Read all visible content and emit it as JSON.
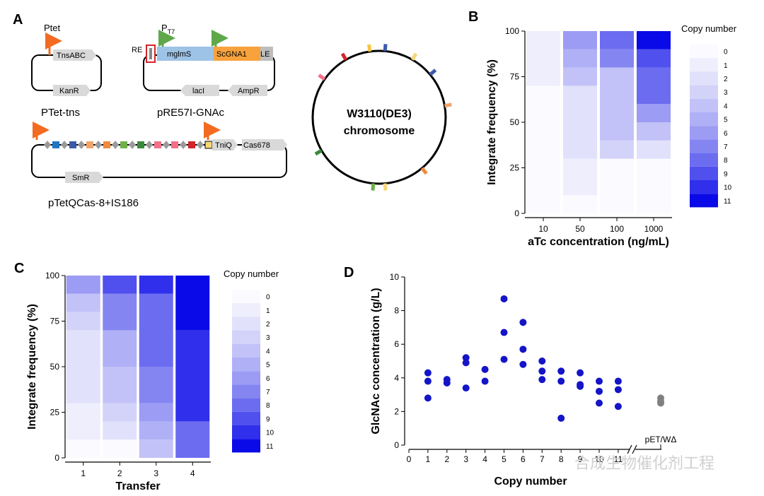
{
  "panels": {
    "a": "A",
    "b": "B",
    "c": "C",
    "d": "D"
  },
  "panel_a": {
    "plasmid1": {
      "promoter": "Ptet",
      "genes": [
        "TnsABC",
        "KanR"
      ],
      "name": "PTet-tns"
    },
    "plasmid2": {
      "promoter": "PT7",
      "promoter_base": "P",
      "promoter_sub": "T7",
      "left_end": "RE",
      "genes": [
        "mglmS",
        "ScGNA1",
        "LE",
        "lacI",
        "AmpR"
      ],
      "name": "pRE57I-GNAc"
    },
    "plasmid3": {
      "genes": [
        "TniQ",
        "Cas678",
        "SmR"
      ],
      "name": "pTetQCas-8+IS186"
    },
    "chromosome": {
      "line1": "W3110(DE3)",
      "line2": "chromosome"
    }
  },
  "legend": {
    "title": "Copy number",
    "labels": [
      "0",
      "1",
      "2",
      "3",
      "4",
      "5",
      "6",
      "7",
      "8",
      "9",
      "10",
      "11"
    ]
  },
  "palette": [
    "#fbfbff",
    "#eeeefd",
    "#e1e1fb",
    "#d3d3f9",
    "#c2c2f8",
    "#b0b0f7",
    "#9c9cf4",
    "#8585f2",
    "#6c6cf0",
    "#5050ee",
    "#3030ec",
    "#0a0ae8"
  ],
  "chart_data": [
    {
      "type": "bar",
      "stacked": true,
      "xlabel": "aTc concentration (ng/mL)",
      "ylabel": "Integrate frequency (%)",
      "ylim": [
        0,
        100
      ],
      "yticks": [
        "0",
        "25",
        "50",
        "75",
        "100"
      ],
      "categories": [
        "10",
        "50",
        "100",
        "1000"
      ],
      "legend_position": "right",
      "series": [
        {
          "name": "0",
          "values": [
            70,
            10,
            30,
            30
          ]
        },
        {
          "name": "1",
          "values": [
            30,
            20,
            0,
            0
          ]
        },
        {
          "name": "2",
          "values": [
            0,
            40,
            0,
            10
          ]
        },
        {
          "name": "3",
          "values": [
            0,
            0,
            10,
            0
          ]
        },
        {
          "name": "4",
          "values": [
            0,
            10,
            40,
            10
          ]
        },
        {
          "name": "5",
          "values": [
            0,
            10,
            0,
            0
          ]
        },
        {
          "name": "6",
          "values": [
            0,
            10,
            0,
            10
          ]
        },
        {
          "name": "7",
          "values": [
            0,
            0,
            10,
            0
          ]
        },
        {
          "name": "8",
          "values": [
            0,
            0,
            10,
            20
          ]
        },
        {
          "name": "9",
          "values": [
            0,
            0,
            0,
            10
          ]
        },
        {
          "name": "10",
          "values": [
            0,
            0,
            0,
            0
          ]
        },
        {
          "name": "11",
          "values": [
            0,
            0,
            0,
            10
          ]
        }
      ]
    },
    {
      "type": "bar",
      "stacked": true,
      "xlabel": "Transfer",
      "ylabel": "Integrate frequency (%)",
      "ylim": [
        0,
        100
      ],
      "yticks": [
        "0",
        "25",
        "50",
        "75",
        "100"
      ],
      "categories": [
        "1",
        "2",
        "3",
        "4"
      ],
      "legend_position": "right",
      "series": [
        {
          "name": "0",
          "values": [
            10,
            10,
            0,
            0
          ]
        },
        {
          "name": "1",
          "values": [
            20,
            0,
            0,
            0
          ]
        },
        {
          "name": "2",
          "values": [
            40,
            10,
            0,
            0
          ]
        },
        {
          "name": "3",
          "values": [
            10,
            10,
            0,
            0
          ]
        },
        {
          "name": "4",
          "values": [
            10,
            20,
            10,
            0
          ]
        },
        {
          "name": "5",
          "values": [
            0,
            20,
            10,
            0
          ]
        },
        {
          "name": "6",
          "values": [
            10,
            0,
            10,
            0
          ]
        },
        {
          "name": "7",
          "values": [
            0,
            20,
            20,
            0
          ]
        },
        {
          "name": "8",
          "values": [
            0,
            0,
            40,
            20
          ]
        },
        {
          "name": "9",
          "values": [
            0,
            10,
            0,
            0
          ]
        },
        {
          "name": "10",
          "values": [
            0,
            0,
            10,
            50
          ]
        },
        {
          "name": "11",
          "values": [
            0,
            0,
            0,
            30
          ]
        }
      ]
    },
    {
      "type": "scatter",
      "xlabel": "Copy number",
      "ylabel": "GlcNAc concentration (g/L)",
      "ylim": [
        0,
        10
      ],
      "yticks": [
        "0",
        "2",
        "4",
        "6",
        "8",
        "10"
      ],
      "xticks": [
        "0",
        "1",
        "2",
        "3",
        "4",
        "5",
        "6",
        "7",
        "8",
        "9",
        "10",
        "11"
      ],
      "extra_category": "pET/WΔ",
      "series": [
        {
          "color": "#1414c8",
          "points": [
            [
              1,
              4.3
            ],
            [
              1,
              3.8
            ],
            [
              1,
              2.8
            ],
            [
              2,
              3.9
            ],
            [
              2,
              3.7
            ],
            [
              3,
              5.2
            ],
            [
              3,
              4.9
            ],
            [
              3,
              3.4
            ],
            [
              4,
              4.5
            ],
            [
              4,
              3.8
            ],
            [
              5,
              8.7
            ],
            [
              5,
              6.7
            ],
            [
              5,
              5.1
            ],
            [
              6,
              7.3
            ],
            [
              6,
              5.7
            ],
            [
              6,
              4.8
            ],
            [
              7,
              5.0
            ],
            [
              7,
              4.4
            ],
            [
              7,
              3.9
            ],
            [
              8,
              4.4
            ],
            [
              8,
              3.8
            ],
            [
              8,
              1.6
            ],
            [
              9,
              4.3
            ],
            [
              9,
              3.6
            ],
            [
              9,
              3.5
            ],
            [
              10,
              3.8
            ],
            [
              10,
              3.2
            ],
            [
              10,
              2.5
            ],
            [
              11,
              3.8
            ],
            [
              11,
              3.3
            ],
            [
              11,
              2.3
            ]
          ]
        },
        {
          "color": "#808080",
          "category": "pET/WΔ",
          "points": [
            2.8,
            2.6,
            2.5
          ]
        }
      ]
    }
  ],
  "watermark": "合成生物催化剂工程"
}
